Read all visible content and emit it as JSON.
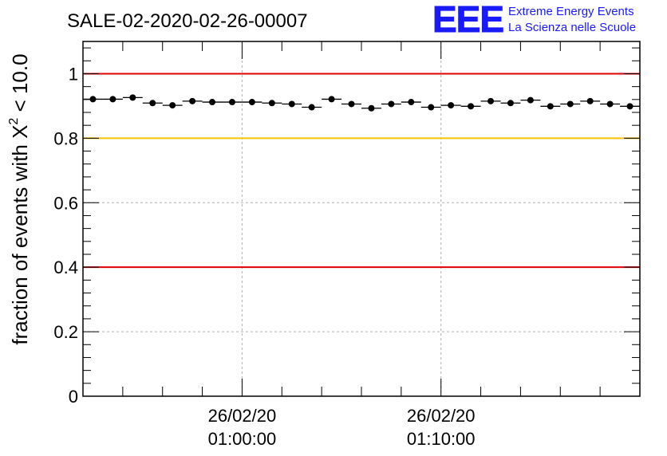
{
  "header": {
    "run_title": "SALE-02-2020-02-26-00007",
    "logo_text": "EEE",
    "logo_line1": "Extreme Energy Events",
    "logo_line2": "La Scienza nelle Scuole",
    "logo_color": "#1a1aff"
  },
  "chart_data": {
    "type": "scatter",
    "title": "SALE-02-2020-02-26-00007",
    "ylabel_prefix": "fraction of events with ",
    "ylabel_symbol": "X",
    "ylabel_exponent": "2",
    "ylabel_suffix": " < 10.0",
    "xlabel": "",
    "ylim": [
      0,
      1.1
    ],
    "x_unit": "minutes after 26/02/20 00:52:00",
    "xlim": [
      0,
      28
    ],
    "y_ticks": [
      "0",
      "0.2",
      "0.4",
      "0.6",
      "0.8",
      "1"
    ],
    "y_tick_values": [
      0,
      0.2,
      0.4,
      0.6,
      0.8,
      1
    ],
    "x_ticks": [
      {
        "at": 8,
        "date": "26/02/20",
        "time": "01:00:00"
      },
      {
        "at": 18,
        "date": "26/02/20",
        "time": "01:10:00"
      }
    ],
    "grid": true,
    "reference_lines": [
      {
        "y": 1.0,
        "color": "#e00000"
      },
      {
        "y": 0.8,
        "color": "#ffc000"
      },
      {
        "y": 0.4,
        "color": "#e00000"
      }
    ],
    "series": [
      {
        "x": [
          0.5,
          1.5,
          2.5,
          3.5,
          4.5,
          5.5,
          6.5,
          7.5,
          8.5,
          9.5,
          10.5,
          11.5,
          12.5,
          13.5,
          14.5,
          15.5,
          16.5,
          17.5,
          18.5,
          19.5,
          20.5,
          21.5,
          22.5,
          23.5,
          24.5,
          25.5,
          26.5,
          27.5
        ],
        "values": [
          0.921,
          0.921,
          0.926,
          0.909,
          0.902,
          0.915,
          0.912,
          0.912,
          0.912,
          0.909,
          0.906,
          0.896,
          0.921,
          0.906,
          0.893,
          0.906,
          0.912,
          0.896,
          0.902,
          0.899,
          0.915,
          0.909,
          0.918,
          0.899,
          0.906,
          0.915,
          0.906,
          0.899
        ],
        "x_halfwidth": 0.5,
        "color": "#000000"
      }
    ]
  }
}
